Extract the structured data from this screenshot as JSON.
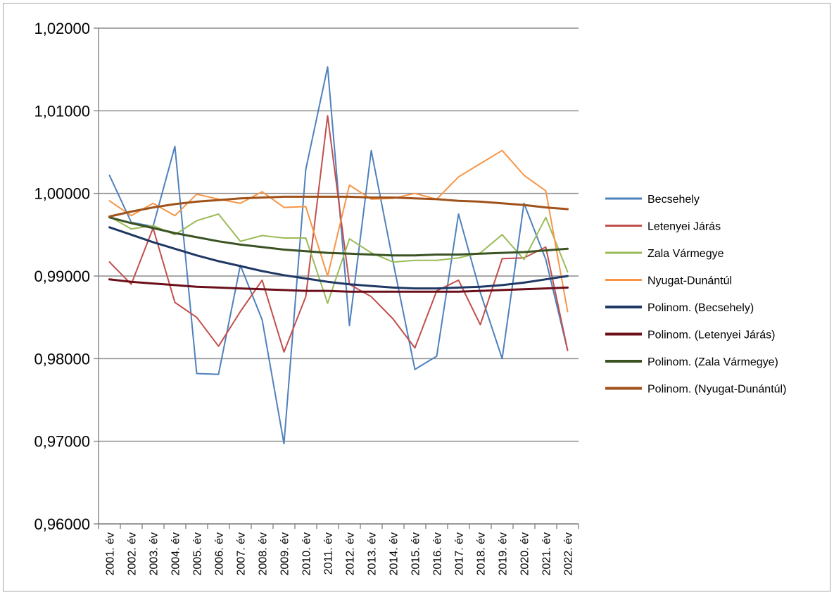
{
  "chart_data": {
    "type": "line",
    "title": "",
    "xlabel": "",
    "ylabel": "",
    "ylim": [
      0.96,
      1.02
    ],
    "yticks": [
      0.96,
      0.97,
      0.98,
      0.99,
      1.0,
      1.01,
      1.02
    ],
    "ytick_labels": [
      "0,96000",
      "0,97000",
      "0,98000",
      "0,99000",
      "1,00000",
      "1,01000",
      "1,02000"
    ],
    "grid": "horizontal major gridlines",
    "legend_position": "right",
    "categories": [
      "2001. év",
      "2002. év",
      "2003. év",
      "2004. év",
      "2005. év",
      "2006. év",
      "2007. év",
      "2008. év",
      "2009. év",
      "2010. év",
      "2011. év",
      "2012. év",
      "2013. év",
      "2014. év",
      "2015. év",
      "2016. év",
      "2017. év",
      "2018. év",
      "2019. év",
      "2020. év",
      "2021. év",
      "2022. év"
    ],
    "series": [
      {
        "name": "Becsehely",
        "color": "#4f81bd",
        "width": 2,
        "values": [
          1.0022,
          0.9965,
          0.996,
          1.0057,
          0.9782,
          0.9781,
          0.9913,
          0.9847,
          0.9697,
          1.0029,
          1.0153,
          0.984,
          1.0052,
          0.9917,
          0.9787,
          0.9803,
          0.9975,
          0.988,
          0.98,
          0.9988,
          0.992,
          0.981
        ]
      },
      {
        "name": "Letenyei Járás",
        "color": "#c0504d",
        "width": 2,
        "values": [
          0.9917,
          0.989,
          0.9958,
          0.9868,
          0.985,
          0.9815,
          0.9857,
          0.9895,
          0.9808,
          0.9875,
          1.0094,
          0.989,
          0.9875,
          0.9848,
          0.9813,
          0.9882,
          0.9895,
          0.9841,
          0.9921,
          0.9922,
          0.9935,
          0.981
        ]
      },
      {
        "name": "Zala Vármegye",
        "color": "#9bbb59",
        "width": 2,
        "values": [
          0.9972,
          0.9957,
          0.9961,
          0.995,
          0.9967,
          0.9975,
          0.9942,
          0.9949,
          0.9946,
          0.9946,
          0.9867,
          0.9945,
          0.9928,
          0.9917,
          0.9919,
          0.9919,
          0.9922,
          0.9928,
          0.995,
          0.992,
          0.9971,
          0.9905
        ]
      },
      {
        "name": "Nyugat-Dunántúl",
        "color": "#f79646",
        "width": 2,
        "values": [
          0.9991,
          0.9973,
          0.9988,
          0.9973,
          0.9999,
          0.9993,
          0.9988,
          1.0002,
          0.9983,
          0.9984,
          0.99,
          1.001,
          0.9993,
          0.9994,
          1.0,
          0.9993,
          1.002,
          1.0036,
          1.0052,
          1.0022,
          1.0003,
          0.9857
        ]
      },
      {
        "name": "Polinom. (Becsehely)",
        "color": "#1f3864",
        "width": 3,
        "values": [
          0.9959,
          0.995,
          0.9941,
          0.9933,
          0.9925,
          0.9918,
          0.9912,
          0.9906,
          0.9901,
          0.9897,
          0.9893,
          0.989,
          0.9888,
          0.9886,
          0.9885,
          0.9885,
          0.9886,
          0.9887,
          0.9889,
          0.9892,
          0.9896,
          0.99
        ]
      },
      {
        "name": "Polinom. (Letenyei Járás)",
        "color": "#6b0f1a",
        "width": 3,
        "values": [
          0.9896,
          0.9893,
          0.9891,
          0.9889,
          0.9887,
          0.9886,
          0.9885,
          0.9884,
          0.9883,
          0.9882,
          0.9882,
          0.9881,
          0.9881,
          0.9881,
          0.9881,
          0.9881,
          0.9881,
          0.9882,
          0.9883,
          0.9884,
          0.9885,
          0.9886
        ]
      },
      {
        "name": "Polinom. (Zala Vármegye)",
        "color": "#3b5323",
        "width": 3,
        "values": [
          0.9971,
          0.9964,
          0.9958,
          0.9952,
          0.9947,
          0.9942,
          0.9938,
          0.9935,
          0.9932,
          0.993,
          0.9928,
          0.9927,
          0.9926,
          0.9925,
          0.9925,
          0.9926,
          0.9926,
          0.9927,
          0.9928,
          0.9929,
          0.9931,
          0.9933
        ]
      },
      {
        "name": "Polinom. (Nyugat-Dunántúl)",
        "color": "#a0521b",
        "width": 3,
        "values": [
          0.9972,
          0.9978,
          0.9983,
          0.9987,
          0.999,
          0.9992,
          0.9994,
          0.9995,
          0.9996,
          0.9996,
          0.9996,
          0.9996,
          0.9995,
          0.9995,
          0.9994,
          0.9993,
          0.9991,
          0.999,
          0.9988,
          0.9986,
          0.9983,
          0.9981
        ]
      }
    ]
  }
}
